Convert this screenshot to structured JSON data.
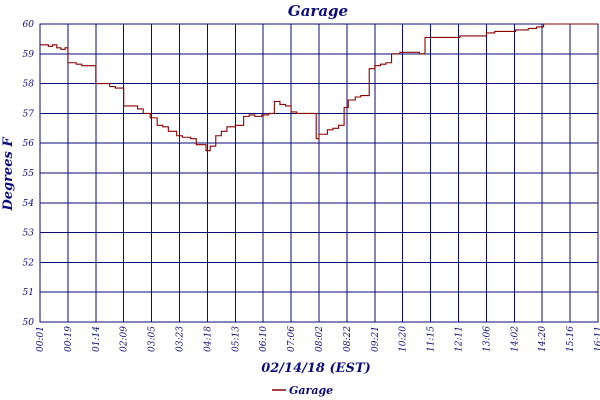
{
  "chart_data": {
    "type": "line",
    "title": "Garage",
    "xlabel": "02/14/18 (EST)",
    "ylabel": "Degrees F",
    "y_ticks": [
      "50",
      "51",
      "52",
      "53",
      "54",
      "55",
      "56",
      "57",
      "58",
      "59",
      "60"
    ],
    "ylim": [
      50,
      60
    ],
    "x_ticks": [
      "00:01",
      "00:19",
      "01:14",
      "02:09",
      "03:05",
      "03:23",
      "04:18",
      "05:13",
      "06:10",
      "07:06",
      "08:02",
      "08:22",
      "09:21",
      "10:20",
      "11:15",
      "12:11",
      "13:06",
      "14:02",
      "14:20",
      "15:16",
      "16:11"
    ],
    "grid": true,
    "legend_position": "bottom-center",
    "series": [
      {
        "name": "Garage",
        "color": "#8b0000",
        "step": true,
        "x": [
          0.0,
          0.15,
          0.3,
          0.45,
          0.6,
          0.75,
          0.9,
          1.0,
          1.3,
          1.5,
          1.7,
          2.0,
          2.3,
          2.5,
          2.7,
          3.0,
          3.2,
          3.5,
          3.7,
          3.95,
          4.2,
          4.4,
          4.6,
          4.9,
          5.1,
          5.4,
          5.6,
          5.8,
          5.95,
          6.1,
          6.3,
          6.5,
          6.7,
          7.0,
          7.3,
          7.5,
          7.7,
          7.95,
          8.2,
          8.4,
          8.6,
          8.8,
          9.0,
          9.2,
          9.4,
          9.6,
          9.9,
          10.0,
          10.3,
          10.5,
          10.7,
          10.9,
          11.05,
          11.3,
          11.5,
          11.8,
          12.0,
          12.2,
          12.4,
          12.6,
          12.9,
          13.05,
          13.4,
          13.6,
          13.8,
          13.95,
          14.2,
          14.5,
          14.8,
          15.05,
          15.3,
          15.6,
          15.8,
          16.0,
          16.3,
          16.6,
          16.9,
          17.05,
          17.3,
          17.5,
          17.8,
          18.05,
          18.3,
          18.6,
          18.9,
          19.05,
          19.3,
          19.6,
          19.8,
          20.0
        ],
        "y": [
          59.3,
          59.3,
          59.25,
          59.3,
          59.2,
          59.15,
          59.2,
          58.7,
          58.65,
          58.6,
          58.6,
          58.0,
          58.0,
          57.9,
          57.85,
          57.25,
          57.25,
          57.15,
          57.0,
          56.85,
          56.6,
          56.55,
          56.4,
          56.25,
          56.2,
          56.15,
          55.95,
          55.95,
          55.75,
          55.9,
          56.25,
          56.4,
          56.55,
          56.6,
          56.9,
          56.95,
          56.9,
          56.95,
          57.0,
          57.4,
          57.3,
          57.25,
          57.05,
          57.0,
          57.0,
          57.0,
          56.15,
          56.3,
          56.45,
          56.5,
          56.6,
          57.2,
          57.45,
          57.55,
          57.6,
          58.5,
          58.6,
          58.65,
          58.7,
          59.0,
          59.05,
          59.05,
          59.05,
          59.0,
          59.55,
          59.55,
          59.55,
          59.55,
          59.55,
          59.6,
          59.6,
          59.6,
          59.6,
          59.7,
          59.75,
          59.75,
          59.75,
          59.8,
          59.8,
          59.85,
          59.9,
          60.0,
          60.0,
          60.0,
          60.0,
          60.0,
          60.0,
          60.0,
          60.0,
          60.0
        ]
      }
    ]
  }
}
